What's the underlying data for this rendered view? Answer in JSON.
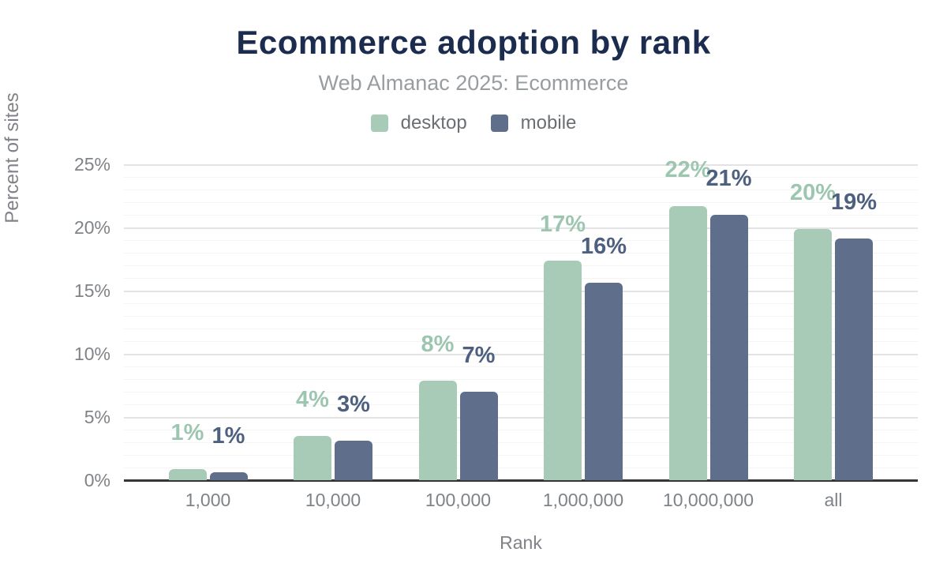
{
  "chart": {
    "title": "Ecommerce adoption by rank",
    "subtitle": "Web Almanac 2025: Ecommerce",
    "xlabel": "Rank",
    "ylabel": "Percent of sites"
  },
  "chart_data": {
    "type": "bar",
    "title": "Ecommerce adoption by rank",
    "subtitle": "Web Almanac 2025: Ecommerce",
    "xlabel": "Rank",
    "ylabel": "Percent of sites",
    "categories": [
      "1,000",
      "10,000",
      "100,000",
      "1,000,000",
      "10,000,000",
      "all"
    ],
    "series": [
      {
        "name": "desktop",
        "values": [
          0.9,
          3.5,
          7.9,
          17.4,
          21.7,
          19.9
        ],
        "data_labels": [
          "1%",
          "4%",
          "8%",
          "17%",
          "22%",
          "20%"
        ]
      },
      {
        "name": "mobile",
        "values": [
          0.6,
          3.1,
          7.0,
          15.6,
          21.0,
          19.1
        ],
        "data_labels": [
          "1%",
          "3%",
          "7%",
          "16%",
          "21%",
          "19%"
        ]
      }
    ],
    "ylim": [
      0,
      25
    ],
    "ytick_labels": [
      "0%",
      "5%",
      "10%",
      "15%",
      "20%",
      "25%"
    ],
    "ytick_values": [
      0,
      5,
      10,
      15,
      20,
      25
    ],
    "minor_grid_step": 1,
    "grid": "horizontal",
    "legend_position": "top-center"
  },
  "colors": {
    "background": "#ffffff",
    "title": "#1b2c4e",
    "subtitle": "#989da1",
    "legend_text": "#6a6f74",
    "tick_text": "#7f8387",
    "axis_line": "#36363a",
    "gridline_major": "#e3e3e3",
    "gridline_minor": "#f4f4f4",
    "desktop_bar": "#a8cbb8",
    "desktop_label": "#9dc6b1",
    "mobile_bar": "#5e6e8b",
    "mobile_label": "#4d6080"
  }
}
